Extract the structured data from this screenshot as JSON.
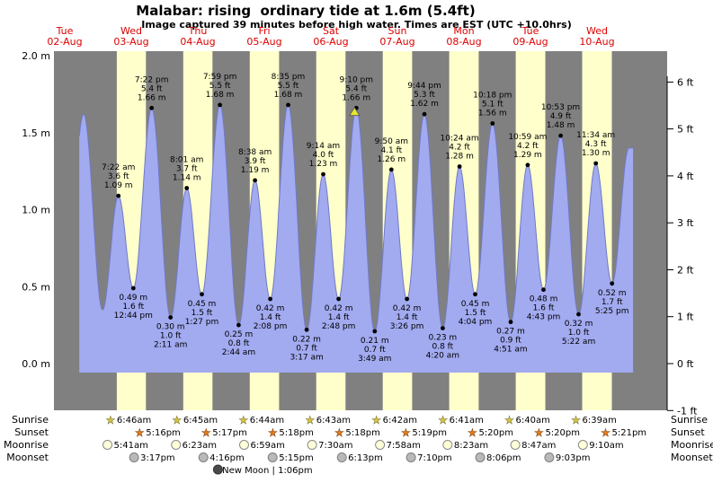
{
  "title": "Malabar: rising  ordinary tide at 1.6m (5.4ft)",
  "subtitle": "Image captured 39 minutes before high water. Times are EST (UTC +10.0hrs)",
  "colors": {
    "night_band": "#808080",
    "day_band": "#ffffcc",
    "tide_fill": "#a2aaf0",
    "tide_line": "#6f7ac8",
    "day_label_red": "#dd0000",
    "marker_yellow": "#e8e430",
    "sunrise_star": "#d9c53f",
    "sunset_star": "#e07b1f",
    "moonrise_fill": "#ffffd9",
    "moonset_fill": "#b9b9b9",
    "new_moon_fill": "#4a4a4a"
  },
  "chart_data": {
    "type": "area",
    "title": "Malabar: rising  ordinary tide at 1.6m (5.4ft)",
    "x_axis_days": [
      {
        "name": "Tue",
        "date": "02-Aug"
      },
      {
        "name": "Wed",
        "date": "03-Aug"
      },
      {
        "name": "Thu",
        "date": "04-Aug"
      },
      {
        "name": "Fri",
        "date": "05-Aug"
      },
      {
        "name": "Sat",
        "date": "06-Aug"
      },
      {
        "name": "Sun",
        "date": "07-Aug"
      },
      {
        "name": "Mon",
        "date": "08-Aug"
      },
      {
        "name": "Tue",
        "date": "09-Aug"
      },
      {
        "name": "Wed",
        "date": "10-Aug"
      }
    ],
    "y_axis_left": {
      "unit": "m",
      "labels": [
        "2.0 m",
        "1.5 m",
        "1.0 m",
        "0.5 m",
        "0.0 m"
      ],
      "values": [
        2.0,
        1.5,
        1.0,
        0.5,
        0.0
      ]
    },
    "y_axis_right": {
      "unit": "ft",
      "labels": [
        "6 ft",
        "5 ft",
        "4 ft",
        "3 ft",
        "2 ft",
        "1 ft",
        "0 ft",
        "-1 ft"
      ],
      "values": [
        6,
        5,
        4,
        3,
        2,
        1,
        0,
        -1
      ]
    },
    "tide_events": [
      {
        "day": 0,
        "time": "12:10 pm",
        "type": "low",
        "height_m": 0.52,
        "labeled": false
      },
      {
        "day": 0,
        "time": "6:50 pm",
        "type": "high",
        "height_m": 1.62,
        "labeled": false
      },
      {
        "day": 1,
        "time": "1:38 am",
        "type": "low",
        "height_m": 0.35,
        "labeled": false
      },
      {
        "day": 1,
        "time": "7:22 am",
        "type": "high",
        "height_m": 1.09,
        "label_ft": "3.6 ft",
        "label_m": "1.09 m"
      },
      {
        "day": 1,
        "time": "12:44 pm",
        "type": "low",
        "height_m": 0.49,
        "label_ft": "1.6 ft",
        "label_m": "0.49 m"
      },
      {
        "day": 1,
        "time": "7:22 pm",
        "type": "high",
        "height_m": 1.66,
        "label_ft": "5.4 ft",
        "label_m": "1.66 m"
      },
      {
        "day": 2,
        "time": "2:11 am",
        "type": "low",
        "height_m": 0.3,
        "label_ft": "1.0 ft",
        "label_m": "0.30 m"
      },
      {
        "day": 2,
        "time": "8:01 am",
        "type": "high",
        "height_m": 1.14,
        "label_ft": "3.7 ft",
        "label_m": "1.14 m"
      },
      {
        "day": 2,
        "time": "1:27 pm",
        "type": "low",
        "height_m": 0.45,
        "label_ft": "1.5 ft",
        "label_m": "0.45 m"
      },
      {
        "day": 2,
        "time": "7:59 pm",
        "type": "high",
        "height_m": 1.68,
        "label_ft": "5.5 ft",
        "label_m": "1.68 m"
      },
      {
        "day": 3,
        "time": "2:44 am",
        "type": "low",
        "height_m": 0.25,
        "label_ft": "0.8 ft",
        "label_m": "0.25 m"
      },
      {
        "day": 3,
        "time": "8:38 am",
        "type": "high",
        "height_m": 1.19,
        "label_ft": "3.9 ft",
        "label_m": "1.19 m"
      },
      {
        "day": 3,
        "time": "2:08 pm",
        "type": "low",
        "height_m": 0.42,
        "label_ft": "1.4 ft",
        "label_m": "0.42 m"
      },
      {
        "day": 3,
        "time": "8:35 pm",
        "type": "high",
        "height_m": 1.68,
        "label_ft": "5.5 ft",
        "label_m": "1.68 m"
      },
      {
        "day": 4,
        "time": "3:17 am",
        "type": "low",
        "height_m": 0.22,
        "label_ft": "0.7 ft",
        "label_m": "0.22 m"
      },
      {
        "day": 4,
        "time": "9:14 am",
        "type": "high",
        "height_m": 1.23,
        "label_ft": "4.0 ft",
        "label_m": "1.23 m"
      },
      {
        "day": 4,
        "time": "2:48 pm",
        "type": "low",
        "height_m": 0.42,
        "label_ft": "1.4 ft",
        "label_m": "0.42 m"
      },
      {
        "day": 4,
        "time": "9:10 pm",
        "type": "high",
        "height_m": 1.66,
        "label_ft": "5.4 ft",
        "label_m": "1.66 m",
        "current": true
      },
      {
        "day": 5,
        "time": "3:49 am",
        "type": "low",
        "height_m": 0.21,
        "label_ft": "0.7 ft",
        "label_m": "0.21 m"
      },
      {
        "day": 5,
        "time": "9:50 am",
        "type": "high",
        "height_m": 1.26,
        "label_ft": "4.1 ft",
        "label_m": "1.26 m"
      },
      {
        "day": 5,
        "time": "3:26 pm",
        "type": "low",
        "height_m": 0.42,
        "label_ft": "1.4 ft",
        "label_m": "0.42 m"
      },
      {
        "day": 5,
        "time": "9:44 pm",
        "type": "high",
        "height_m": 1.62,
        "label_ft": "5.3 ft",
        "label_m": "1.62 m"
      },
      {
        "day": 6,
        "time": "4:20 am",
        "type": "low",
        "height_m": 0.23,
        "label_ft": "0.8 ft",
        "label_m": "0.23 m"
      },
      {
        "day": 6,
        "time": "10:24 am",
        "type": "high",
        "height_m": 1.28,
        "label_ft": "4.2 ft",
        "label_m": "1.28 m"
      },
      {
        "day": 6,
        "time": "4:04 pm",
        "type": "low",
        "height_m": 0.45,
        "label_ft": "1.5 ft",
        "label_m": "0.45 m"
      },
      {
        "day": 6,
        "time": "10:18 pm",
        "type": "high",
        "height_m": 1.56,
        "label_ft": "5.1 ft",
        "label_m": "1.56 m"
      },
      {
        "day": 7,
        "time": "4:51 am",
        "type": "low",
        "height_m": 0.27,
        "label_ft": "0.9 ft",
        "label_m": "0.27 m"
      },
      {
        "day": 7,
        "time": "10:59 am",
        "type": "high",
        "height_m": 1.29,
        "label_ft": "4.2 ft",
        "label_m": "1.29 m"
      },
      {
        "day": 7,
        "time": "4:43 pm",
        "type": "low",
        "height_m": 0.48,
        "label_ft": "1.6 ft",
        "label_m": "0.48 m"
      },
      {
        "day": 7,
        "time": "10:53 pm",
        "type": "high",
        "height_m": 1.48,
        "label_ft": "4.9 ft",
        "label_m": "1.48 m"
      },
      {
        "day": 8,
        "time": "5:22 am",
        "type": "low",
        "height_m": 0.32,
        "label_ft": "1.0 ft",
        "label_m": "0.32 m"
      },
      {
        "day": 8,
        "time": "11:34 am",
        "type": "high",
        "height_m": 1.3,
        "label_ft": "4.3 ft",
        "label_m": "1.30 m"
      },
      {
        "day": 8,
        "time": "5:25 pm",
        "type": "low",
        "height_m": 0.52,
        "label_ft": "1.7 ft",
        "label_m": "0.52 m"
      },
      {
        "day": 8,
        "time": "11:30 pm",
        "type": "high",
        "height_m": 1.4,
        "labeled": false
      }
    ],
    "curve_start": {
      "day": 0,
      "time": "5:16 pm"
    },
    "curve_end": {
      "day": 9,
      "time": "1:00 am"
    },
    "current_marker": {
      "day": 4,
      "time": "8:31 pm",
      "note": "39 minutes before high water"
    }
  },
  "astro": {
    "row_labels": [
      "Sunrise",
      "Sunset",
      "Moonrise",
      "Moonset"
    ],
    "sunrise": [
      {
        "day": 1,
        "time": "6:46am"
      },
      {
        "day": 2,
        "time": "6:45am"
      },
      {
        "day": 3,
        "time": "6:44am"
      },
      {
        "day": 4,
        "time": "6:43am"
      },
      {
        "day": 5,
        "time": "6:42am"
      },
      {
        "day": 6,
        "time": "6:41am"
      },
      {
        "day": 7,
        "time": "6:40am"
      },
      {
        "day": 8,
        "time": "6:39am"
      }
    ],
    "sunset": [
      {
        "day": 1,
        "time": "5:16pm"
      },
      {
        "day": 2,
        "time": "5:17pm"
      },
      {
        "day": 3,
        "time": "5:18pm"
      },
      {
        "day": 4,
        "time": "5:18pm"
      },
      {
        "day": 5,
        "time": "5:19pm"
      },
      {
        "day": 6,
        "time": "5:20pm"
      },
      {
        "day": 7,
        "time": "5:20pm"
      },
      {
        "day": 8,
        "time": "5:21pm"
      }
    ],
    "moonrise": [
      {
        "day": 1,
        "time": "5:41am"
      },
      {
        "day": 2,
        "time": "6:23am"
      },
      {
        "day": 3,
        "time": "6:59am"
      },
      {
        "day": 4,
        "time": "7:30am"
      },
      {
        "day": 5,
        "time": "7:58am"
      },
      {
        "day": 6,
        "time": "8:23am"
      },
      {
        "day": 7,
        "time": "8:47am"
      },
      {
        "day": 8,
        "time": "9:10am"
      }
    ],
    "moonset": [
      {
        "day": 1,
        "time": "3:17pm"
      },
      {
        "day": 2,
        "time": "4:16pm"
      },
      {
        "day": 3,
        "time": "5:15pm"
      },
      {
        "day": 4,
        "time": "6:13pm"
      },
      {
        "day": 5,
        "time": "7:10pm"
      },
      {
        "day": 6,
        "time": "8:06pm"
      },
      {
        "day": 7,
        "time": "9:03pm"
      }
    ],
    "new_moon": {
      "day": 3,
      "time": "1:06pm",
      "label": "New Moon"
    }
  }
}
